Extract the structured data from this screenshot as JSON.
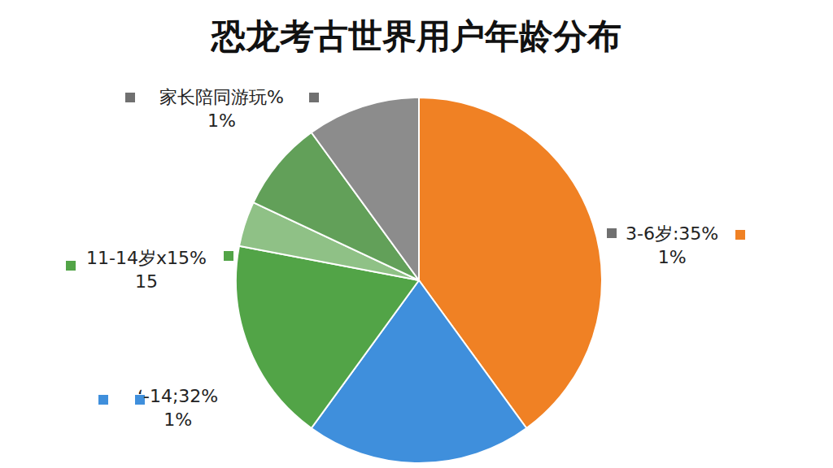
{
  "chart_data": {
    "type": "pie",
    "title": "恐龙考古世界用户年龄分布",
    "values": [
      40,
      20,
      18,
      4,
      8,
      10
    ],
    "colors": [
      "#f08124",
      "#3f8fdc",
      "#52a447",
      "#8fc186",
      "#62a059",
      "#8c8c8c"
    ],
    "annotations": [
      [
        "家长陪同游玩%",
        "1%"
      ],
      [
        "3-6岁:35%",
        "1%"
      ],
      [
        "11-14岁x15%",
        "15"
      ],
      [
        "ʻ-14;32%",
        "1%"
      ]
    ]
  }
}
